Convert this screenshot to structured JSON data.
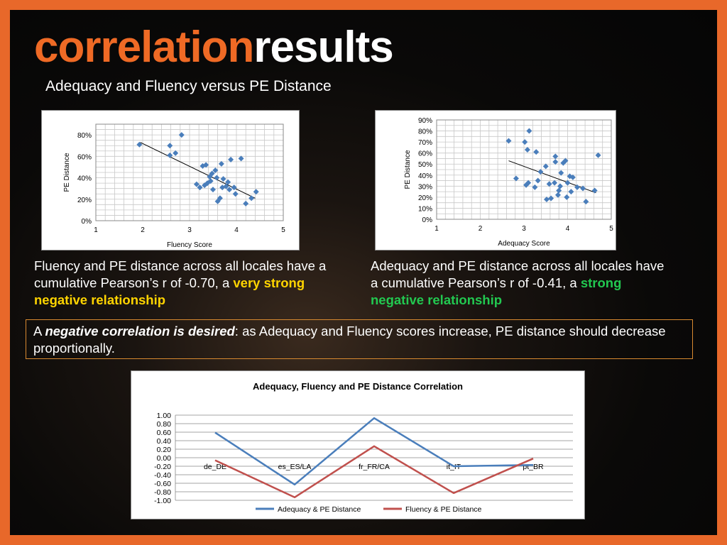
{
  "header": {
    "title_part1": "correlation",
    "title_part2": "results",
    "subtitle": "Adequacy and Fluency versus PE Distance"
  },
  "colors": {
    "accent": "#ef6a25",
    "series_blue": "#4a7ebb",
    "series_red": "#c0504d",
    "highlight_yellow": "#ffd400",
    "highlight_green": "#22c850"
  },
  "text": {
    "fluency_para_prefix": "Fluency and PE distance across all locales have a cumulative Pearson’s r of -0.70, a ",
    "fluency_para_highlight": "very strong negative relationship",
    "adequacy_para_prefix": "Adequacy and PE distance across all locales have a cumulative Pearson’s r of -0.41, a ",
    "adequacy_para_highlight": "strong negative relationship",
    "note_prefix": "A ",
    "note_emph": "negative correlation is desired",
    "note_rest": ": as Adequacy and Fluency scores increase, PE distance should decrease proportionally."
  },
  "chart_data": [
    {
      "type": "scatter",
      "title": "",
      "xlabel": "Fluency Score",
      "ylabel": "PE Distance",
      "xlim": [
        1,
        5
      ],
      "ylim": [
        0,
        0.9
      ],
      "xticks": [
        "1",
        "2",
        "3",
        "4",
        "5"
      ],
      "yticks": [
        "0%",
        "20%",
        "40%",
        "60%",
        "80%"
      ],
      "ytick_values": [
        0,
        0.2,
        0.4,
        0.6,
        0.8
      ],
      "grid": true,
      "trendline": {
        "x": [
          1.95,
          4.4
        ],
        "y": [
          0.73,
          0.21
        ]
      },
      "points": [
        {
          "x": 1.93,
          "y": 0.71
        },
        {
          "x": 2.58,
          "y": 0.7
        },
        {
          "x": 2.58,
          "y": 0.61
        },
        {
          "x": 2.7,
          "y": 0.63
        },
        {
          "x": 2.83,
          "y": 0.8
        },
        {
          "x": 3.15,
          "y": 0.34
        },
        {
          "x": 3.22,
          "y": 0.31
        },
        {
          "x": 3.28,
          "y": 0.51
        },
        {
          "x": 3.35,
          "y": 0.52
        },
        {
          "x": 3.32,
          "y": 0.33
        },
        {
          "x": 3.38,
          "y": 0.35
        },
        {
          "x": 3.43,
          "y": 0.41
        },
        {
          "x": 3.45,
          "y": 0.37
        },
        {
          "x": 3.48,
          "y": 0.44
        },
        {
          "x": 3.5,
          "y": 0.29
        },
        {
          "x": 3.55,
          "y": 0.47
        },
        {
          "x": 3.58,
          "y": 0.4
        },
        {
          "x": 3.6,
          "y": 0.18
        },
        {
          "x": 3.65,
          "y": 0.21
        },
        {
          "x": 3.68,
          "y": 0.53
        },
        {
          "x": 3.7,
          "y": 0.31
        },
        {
          "x": 3.72,
          "y": 0.39
        },
        {
          "x": 3.78,
          "y": 0.32
        },
        {
          "x": 3.82,
          "y": 0.36
        },
        {
          "x": 3.85,
          "y": 0.29
        },
        {
          "x": 3.88,
          "y": 0.57
        },
        {
          "x": 3.95,
          "y": 0.31
        },
        {
          "x": 3.98,
          "y": 0.25
        },
        {
          "x": 4.1,
          "y": 0.58
        },
        {
          "x": 4.2,
          "y": 0.16
        },
        {
          "x": 4.32,
          "y": 0.21
        },
        {
          "x": 4.42,
          "y": 0.27
        }
      ]
    },
    {
      "type": "scatter",
      "title": "",
      "xlabel": "Adequacy Score",
      "ylabel": "PE Distance",
      "xlim": [
        1,
        5
      ],
      "ylim": [
        0,
        0.9
      ],
      "xticks": [
        "1",
        "2",
        "3",
        "4",
        "5"
      ],
      "yticks": [
        "0%",
        "10%",
        "20%",
        "30%",
        "40%",
        "50%",
        "60%",
        "70%",
        "80%",
        "90%"
      ],
      "ytick_values": [
        0,
        0.1,
        0.2,
        0.3,
        0.4,
        0.5,
        0.6,
        0.7,
        0.8,
        0.9
      ],
      "grid": true,
      "trendline": {
        "x": [
          2.65,
          4.65
        ],
        "y": [
          0.53,
          0.24
        ]
      },
      "points": [
        {
          "x": 2.65,
          "y": 0.71
        },
        {
          "x": 2.82,
          "y": 0.37
        },
        {
          "x": 3.02,
          "y": 0.7
        },
        {
          "x": 3.08,
          "y": 0.63
        },
        {
          "x": 3.12,
          "y": 0.8
        },
        {
          "x": 3.05,
          "y": 0.31
        },
        {
          "x": 3.1,
          "y": 0.33
        },
        {
          "x": 3.25,
          "y": 0.29
        },
        {
          "x": 3.28,
          "y": 0.61
        },
        {
          "x": 3.32,
          "y": 0.35
        },
        {
          "x": 3.38,
          "y": 0.43
        },
        {
          "x": 3.5,
          "y": 0.48
        },
        {
          "x": 3.52,
          "y": 0.18
        },
        {
          "x": 3.58,
          "y": 0.32
        },
        {
          "x": 3.62,
          "y": 0.19
        },
        {
          "x": 3.7,
          "y": 0.33
        },
        {
          "x": 3.72,
          "y": 0.52
        },
        {
          "x": 3.72,
          "y": 0.57
        },
        {
          "x": 3.78,
          "y": 0.22
        },
        {
          "x": 3.8,
          "y": 0.26
        },
        {
          "x": 3.83,
          "y": 0.3
        },
        {
          "x": 3.85,
          "y": 0.42
        },
        {
          "x": 3.9,
          "y": 0.51
        },
        {
          "x": 3.95,
          "y": 0.53
        },
        {
          "x": 3.98,
          "y": 0.2
        },
        {
          "x": 4.0,
          "y": 0.33
        },
        {
          "x": 4.05,
          "y": 0.39
        },
        {
          "x": 4.08,
          "y": 0.25
        },
        {
          "x": 4.12,
          "y": 0.38
        },
        {
          "x": 4.22,
          "y": 0.29
        },
        {
          "x": 4.35,
          "y": 0.28
        },
        {
          "x": 4.42,
          "y": 0.16
        },
        {
          "x": 4.62,
          "y": 0.26
        },
        {
          "x": 4.7,
          "y": 0.58
        }
      ]
    },
    {
      "type": "line",
      "title": "Adequacy, Fluency and PE Distance Correlation",
      "categories": [
        "de_DE",
        "es_ES/LA",
        "fr_FR/CA",
        "it_IT",
        "pt_BR"
      ],
      "ylim": [
        -1.0,
        1.0
      ],
      "yticks": [
        "1.00",
        "0.80",
        "0.60",
        "0.40",
        "0.20",
        "0.00",
        "-0.20",
        "-0.40",
        "-0.60",
        "-0.80",
        "-1.00"
      ],
      "ytick_values": [
        1,
        0.8,
        0.6,
        0.4,
        0.2,
        0,
        -0.2,
        -0.4,
        -0.6,
        -0.8,
        -1
      ],
      "grid": true,
      "legend_position": "bottom",
      "series": [
        {
          "name": "Adequacy & PE Distance",
          "color": "#4a7ebb",
          "values": [
            0.59,
            -0.63,
            0.93,
            -0.2,
            -0.17
          ]
        },
        {
          "name": "Fluency & PE Distance",
          "color": "#c0504d",
          "values": [
            -0.06,
            -0.93,
            0.27,
            -0.83,
            -0.02
          ]
        }
      ]
    }
  ]
}
